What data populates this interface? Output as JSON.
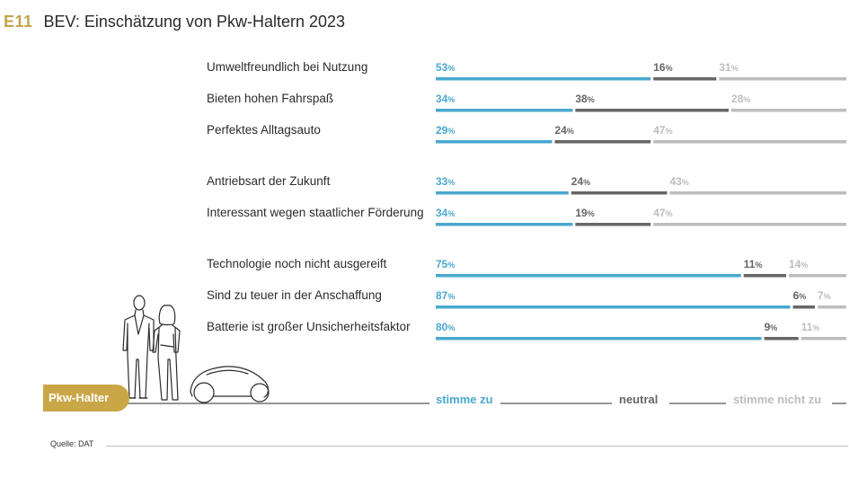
{
  "header": {
    "code": "E11",
    "title": "BEV: Einschätzung von Pkw-Haltern 2023"
  },
  "badge": {
    "label": "Pkw-Halter"
  },
  "source": {
    "label": "Quelle: DAT"
  },
  "colors": {
    "agree": "#4aa8cf",
    "neutral": "#666666",
    "disagree": "#bdbdbd",
    "accent": "#c3a44a",
    "text": "#2b2b2b"
  },
  "chart_data": {
    "type": "bar",
    "orientation": "horizontal-stacked-100",
    "title": "BEV: Einschätzung von Pkw-Haltern 2023",
    "unit": "%",
    "legend": [
      "stimme zu",
      "neutral",
      "stimme nicht zu"
    ],
    "categories": [
      "Umweltfreundlich bei Nutzung",
      "Bieten hohen Fahrspaß",
      "Perfektes Alltagsauto",
      "Antriebsart der Zukunft",
      "Interessant wegen staatlicher Förderung",
      "Technologie noch nicht ausgereift",
      "Sind zu teuer in der Anschaffung",
      "Batterie ist großer Unsicherheitsfaktor"
    ],
    "series": [
      {
        "name": "stimme zu",
        "values": [
          53,
          34,
          29,
          33,
          34,
          75,
          87,
          80
        ]
      },
      {
        "name": "neutral",
        "values": [
          16,
          38,
          24,
          24,
          19,
          11,
          6,
          9
        ]
      },
      {
        "name": "stimme nicht zu",
        "values": [
          31,
          28,
          47,
          43,
          47,
          14,
          7,
          11
        ]
      }
    ],
    "groups": [
      [
        0,
        1,
        2
      ],
      [
        3,
        4
      ],
      [
        5,
        6,
        7
      ]
    ]
  }
}
